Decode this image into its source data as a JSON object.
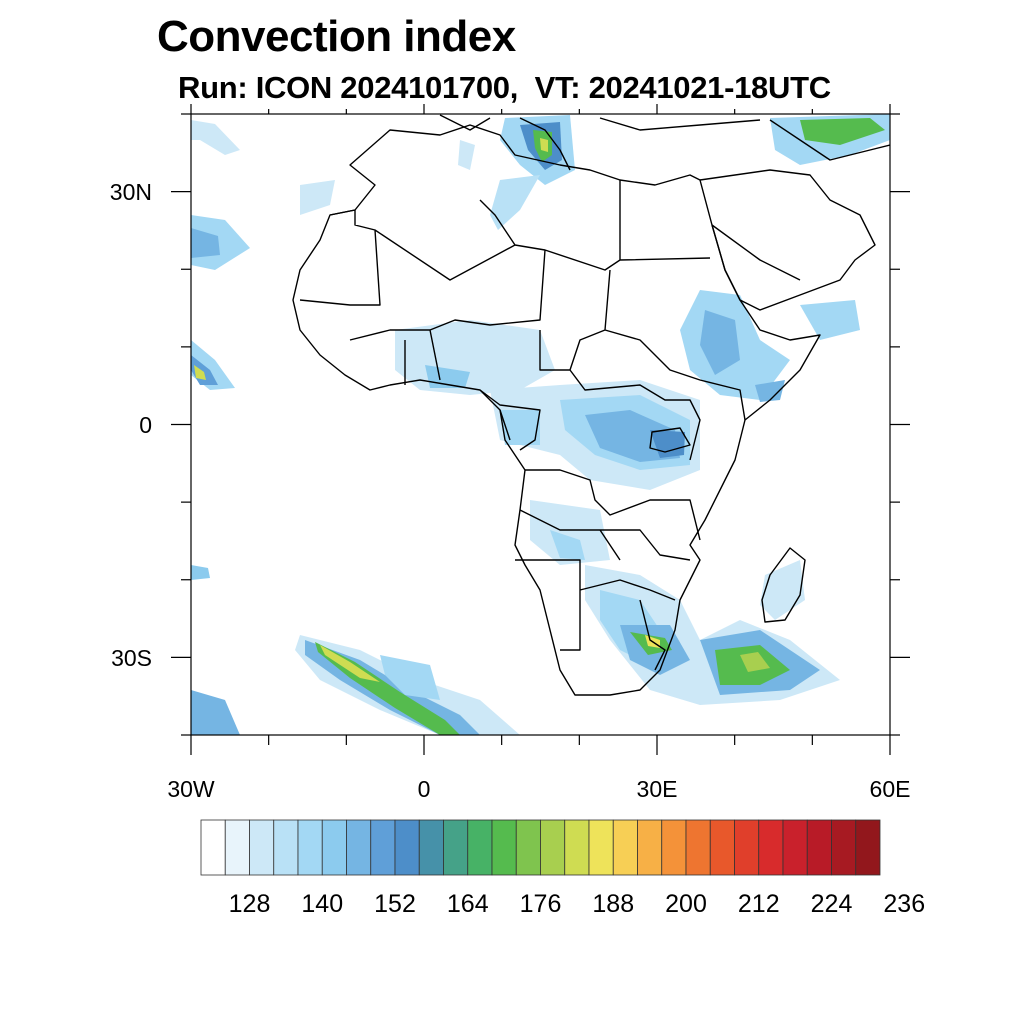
{
  "title": "Convection index",
  "subtitle": "Run: ICON 2024101700,  VT: 20241021-18UTC",
  "map": {
    "region": "Africa",
    "lon_range": [
      -30,
      60
    ],
    "lat_range": [
      -40,
      40
    ],
    "x_ticks": [
      {
        "value": -30,
        "label": "30W"
      },
      {
        "value": 0,
        "label": "0"
      },
      {
        "value": 30,
        "label": "30E"
      },
      {
        "value": 60,
        "label": "60E"
      }
    ],
    "y_ticks": [
      {
        "value": 30,
        "label": "30N"
      },
      {
        "value": 0,
        "label": "0"
      },
      {
        "value": -30,
        "label": "30S"
      }
    ]
  },
  "colorbar": {
    "colors": [
      "#ffffff",
      "#e8f4fb",
      "#cde8f7",
      "#b9e1f6",
      "#a3d8f4",
      "#8ccbee",
      "#75b5e3",
      "#5f9fd8",
      "#4d8ec9",
      "#4691a9",
      "#45a288",
      "#47b266",
      "#55bb4e",
      "#7fc44e",
      "#a8cf4f",
      "#cfdc52",
      "#eee35a",
      "#f7cf55",
      "#f7b046",
      "#f49239",
      "#ee7530",
      "#e8582b",
      "#e03f2b",
      "#d82b2c",
      "#c9212c",
      "#b81b27",
      "#a71a22",
      "#92171c"
    ],
    "labels": [
      "128",
      "140",
      "152",
      "164",
      "176",
      "188",
      "200",
      "212",
      "224",
      "236"
    ]
  }
}
